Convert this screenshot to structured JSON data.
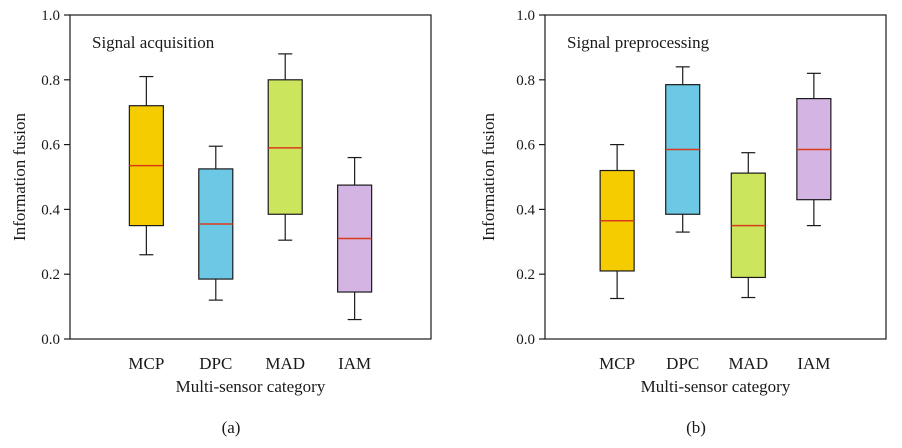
{
  "chart_data": [
    {
      "type": "box",
      "title": "Signal acquisition",
      "caption": "(a)",
      "xlabel": "Multi-sensor category",
      "ylabel": "Information fusion",
      "ylim": [
        0.0,
        1.0
      ],
      "yticks": [
        "0.0",
        "0.2",
        "0.4",
        "0.6",
        "0.8",
        "1.0"
      ],
      "categories": [
        "MCP",
        "DPC",
        "MAD",
        "IAM"
      ],
      "colors": [
        "#f5cc00",
        "#6cc8e4",
        "#cbe55d",
        "#d4b4e2"
      ],
      "median_color": "#d83a1c",
      "boxes": [
        {
          "min": 0.26,
          "q1": 0.35,
          "median": 0.535,
          "q3": 0.72,
          "max": 0.81
        },
        {
          "min": 0.12,
          "q1": 0.185,
          "median": 0.355,
          "q3": 0.525,
          "max": 0.595
        },
        {
          "min": 0.305,
          "q1": 0.385,
          "median": 0.59,
          "q3": 0.8,
          "max": 0.88
        },
        {
          "min": 0.06,
          "q1": 0.145,
          "median": 0.31,
          "q3": 0.475,
          "max": 0.56
        }
      ],
      "grid": false
    },
    {
      "type": "box",
      "title": "Signal preprocessing",
      "caption": "(b)",
      "xlabel": "Multi-sensor category",
      "ylabel": "Information fusion",
      "ylim": [
        0.0,
        1.0
      ],
      "yticks": [
        "0.0",
        "0.2",
        "0.4",
        "0.6",
        "0.8",
        "1.0"
      ],
      "categories": [
        "MCP",
        "DPC",
        "MAD",
        "IAM"
      ],
      "colors": [
        "#f5cc00",
        "#6cc8e4",
        "#cbe55d",
        "#d4b4e2"
      ],
      "median_color": "#d83a1c",
      "boxes": [
        {
          "min": 0.125,
          "q1": 0.21,
          "median": 0.365,
          "q3": 0.52,
          "max": 0.6
        },
        {
          "min": 0.33,
          "q1": 0.385,
          "median": 0.585,
          "q3": 0.785,
          "max": 0.84
        },
        {
          "min": 0.128,
          "q1": 0.19,
          "median": 0.35,
          "q3": 0.512,
          "max": 0.575
        },
        {
          "min": 0.35,
          "q1": 0.43,
          "median": 0.585,
          "q3": 0.742,
          "max": 0.82
        }
      ],
      "grid": false
    }
  ]
}
